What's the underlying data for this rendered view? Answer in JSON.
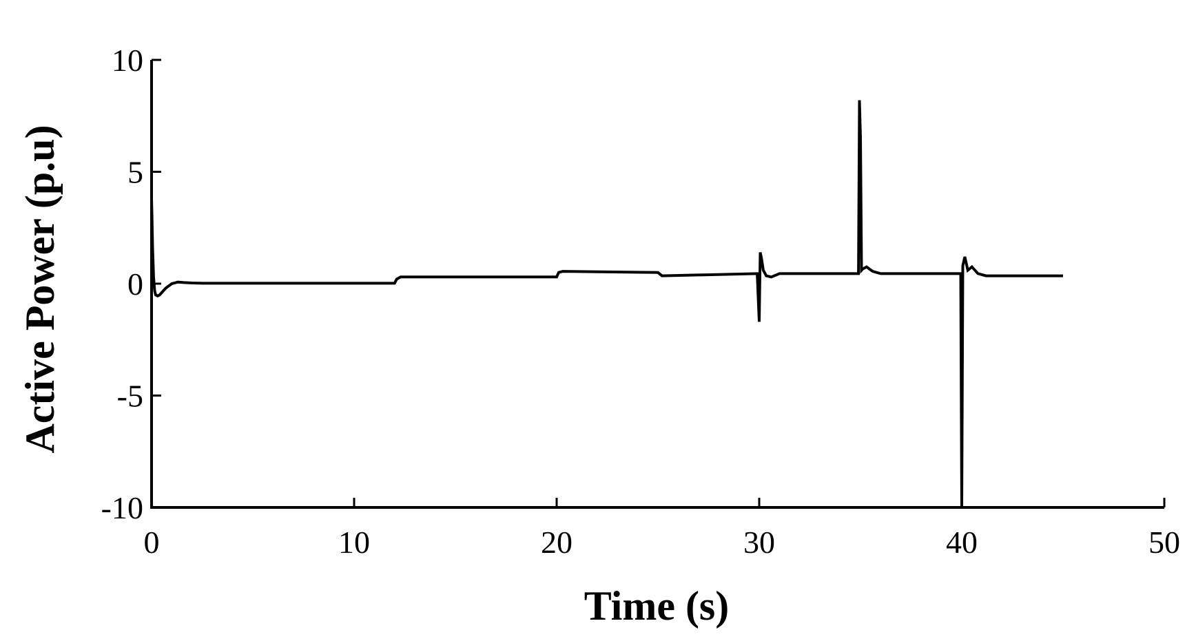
{
  "chart_data": {
    "type": "line",
    "title": "",
    "xlabel": "Time (s)",
    "ylabel": "Active Power (p.u)",
    "xlim": [
      0,
      50
    ],
    "ylim": [
      -10,
      10
    ],
    "xticks": [
      0,
      10,
      20,
      30,
      40,
      50
    ],
    "yticks": [
      10,
      5,
      0,
      -5,
      -10
    ],
    "grid": false,
    "legend": "none",
    "line_color": "#000000",
    "series": [
      {
        "x": [
          0,
          0.02,
          0.05,
          0.1,
          0.15,
          0.2,
          0.3,
          0.4,
          0.5,
          0.7,
          1.0,
          1.3,
          1.6,
          2.0,
          2.5,
          12.0,
          12.1,
          12.3,
          20.0,
          20.1,
          20.3,
          25.0,
          25.2,
          29.9,
          30.0,
          30.05,
          30.12,
          30.2,
          30.35,
          30.6,
          31.0,
          34.9,
          34.95,
          35.0,
          35.05,
          35.1,
          35.3,
          35.6,
          36.0,
          39.95,
          40.0,
          40.05,
          40.15,
          40.3,
          40.5,
          40.8,
          41.2,
          45.0
        ],
        "y": [
          3.8,
          3.0,
          1.6,
          0.3,
          -0.3,
          -0.5,
          -0.55,
          -0.5,
          -0.4,
          -0.2,
          0.0,
          0.07,
          0.05,
          0.03,
          0.02,
          0.02,
          0.2,
          0.3,
          0.3,
          0.5,
          0.55,
          0.5,
          0.35,
          0.45,
          -1.7,
          1.4,
          1.1,
          0.6,
          0.35,
          0.3,
          0.45,
          0.45,
          8.2,
          6.5,
          0.6,
          0.65,
          0.75,
          0.55,
          0.45,
          0.45,
          -10.0,
          0.8,
          1.2,
          0.6,
          0.75,
          0.45,
          0.35,
          0.35
        ]
      }
    ]
  }
}
